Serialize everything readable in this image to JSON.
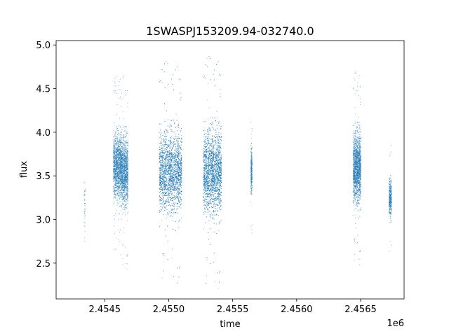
{
  "chart_data": {
    "type": "scatter",
    "title": "1SWASPJ153209.94-032740.0",
    "xlabel": "time",
    "ylabel": "flux",
    "x_offset_label": "1e6",
    "xlim": [
      2.45412,
      2.45684
    ],
    "ylim": [
      2.09,
      5.05
    ],
    "x_ticks": [
      2.4545,
      2.455,
      2.4555,
      2.456,
      2.4565
    ],
    "x_tick_labels": [
      "2.4545",
      "2.4550",
      "2.4555",
      "2.4560",
      "2.4565"
    ],
    "y_ticks": [
      2.5,
      3.0,
      3.5,
      4.0,
      4.5,
      5.0
    ],
    "y_tick_labels": [
      "2.5",
      "3.0",
      "3.5",
      "4.0",
      "4.5",
      "5.0"
    ],
    "grid": false,
    "marker_color": "#1f77b4",
    "series": [
      {
        "clusters": [
          {
            "x_range": [
              2.454335,
              2.454345
            ],
            "y_center": 3.15,
            "y_spread": 0.25,
            "count": 40
          },
          {
            "x_range": [
              2.454565,
              2.45463
            ],
            "y_center": 3.62,
            "y_spread": 0.33,
            "count": 1500
          },
          {
            "x_range": [
              2.45463,
              2.45468
            ],
            "y_center": 3.55,
            "y_spread": 0.35,
            "count": 1200
          },
          {
            "x_range": [
              2.454925,
              2.4551
            ],
            "y_center": 3.55,
            "y_spread": 0.4,
            "count": 3200
          },
          {
            "x_range": [
              2.45527,
              2.45541
            ],
            "y_center": 3.55,
            "y_spread": 0.42,
            "count": 3000
          },
          {
            "x_range": [
              2.45564,
              2.45565
            ],
            "y_center": 3.55,
            "y_spread": 0.22,
            "count": 300
          },
          {
            "x_range": [
              2.45644,
              2.4565
            ],
            "y_center": 3.6,
            "y_spread": 0.35,
            "count": 1800
          },
          {
            "x_range": [
              2.45672,
              2.45674
            ],
            "y_center": 3.25,
            "y_spread": 0.2,
            "count": 400
          }
        ]
      }
    ]
  }
}
